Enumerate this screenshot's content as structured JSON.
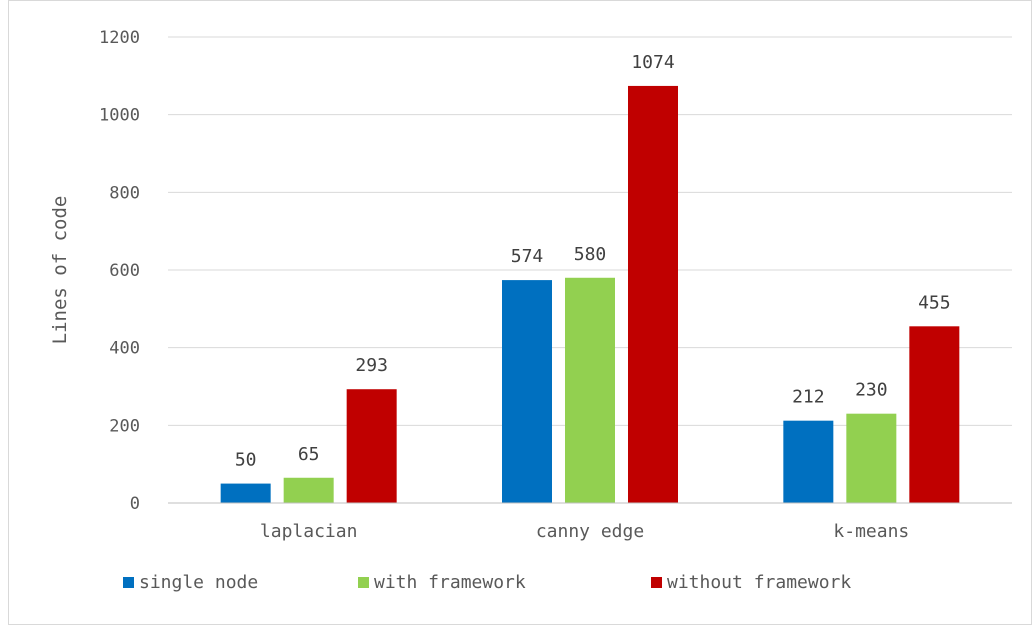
{
  "chart_data": {
    "type": "bar",
    "title": "",
    "xlabel": "",
    "ylabel": "Lines of code",
    "ylim": [
      0,
      1200
    ],
    "yticks": [
      0,
      200,
      400,
      600,
      800,
      1000,
      1200
    ],
    "grid": true,
    "legend_position": "bottom",
    "categories": [
      "laplacian",
      "canny edge",
      "k-means"
    ],
    "series": [
      {
        "name": "single node",
        "color": "#0070c0",
        "values": [
          50,
          574,
          212
        ]
      },
      {
        "name": "with framework",
        "color": "#92d050",
        "values": [
          65,
          580,
          230
        ]
      },
      {
        "name": "without framework",
        "color": "#c00000",
        "values": [
          293,
          1074,
          455
        ]
      }
    ]
  }
}
